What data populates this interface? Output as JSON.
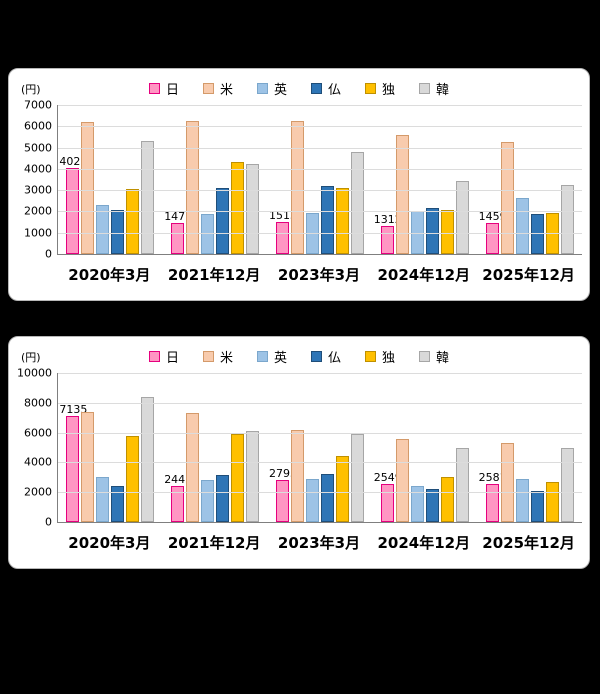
{
  "unit_label": "(円)",
  "colors": {
    "日": {
      "fill": "#ff96c3",
      "border": "#e6007e"
    },
    "米": {
      "fill": "#f8cbad",
      "border": "#d49a6a"
    },
    "英": {
      "fill": "#9dc3e6",
      "border": "#7ba7cc"
    },
    "仏": {
      "fill": "#2e75b6",
      "border": "#1f4e79"
    },
    "独": {
      "fill": "#ffc000",
      "border": "#bf9000"
    },
    "韓": {
      "fill": "#d9d9d9",
      "border": "#a6a6a6"
    }
  },
  "chart_data": [
    {
      "type": "bar",
      "title": "",
      "unit": "(円)",
      "ylim": [
        0,
        7000
      ],
      "ytick": 1000,
      "grid": true,
      "legend_position": "top",
      "categories": [
        "2020年3月",
        "2021年12月",
        "2023年3月",
        "2024年12月",
        "2025年12月"
      ],
      "series": [
        {
          "name": "日",
          "values": [
            4021,
            1477,
            1513,
            1312,
            1459
          ],
          "data_labels": true
        },
        {
          "name": "米",
          "values": [
            6200,
            6250,
            6250,
            5600,
            5250
          ]
        },
        {
          "name": "英",
          "values": [
            2300,
            1900,
            1950,
            2000,
            2650
          ]
        },
        {
          "name": "仏",
          "values": [
            2050,
            3100,
            3200,
            2150,
            1900
          ]
        },
        {
          "name": "独",
          "values": [
            3050,
            4300,
            3100,
            2050,
            1950
          ]
        },
        {
          "name": "韓",
          "values": [
            5300,
            4250,
            4800,
            3450,
            3250
          ]
        }
      ]
    },
    {
      "type": "bar",
      "title": "",
      "unit": "(円)",
      "ylim": [
        0,
        10000
      ],
      "ytick": 2000,
      "grid": true,
      "legend_position": "top",
      "categories": [
        "2020年3月",
        "2021年12月",
        "2023年3月",
        "2024年12月",
        "2025年12月"
      ],
      "series": [
        {
          "name": "日",
          "values": [
            7135,
            2445,
            2795,
            2549,
            2581
          ],
          "data_labels": true
        },
        {
          "name": "米",
          "values": [
            7400,
            7300,
            6200,
            5600,
            5300
          ]
        },
        {
          "name": "英",
          "values": [
            3050,
            2850,
            2900,
            2400,
            2900
          ]
        },
        {
          "name": "仏",
          "values": [
            2400,
            3150,
            3200,
            2200,
            2100
          ]
        },
        {
          "name": "独",
          "values": [
            5800,
            5900,
            4450,
            3000,
            2700
          ]
        },
        {
          "name": "韓",
          "values": [
            8400,
            6100,
            5900,
            5000,
            5000
          ]
        }
      ]
    }
  ]
}
